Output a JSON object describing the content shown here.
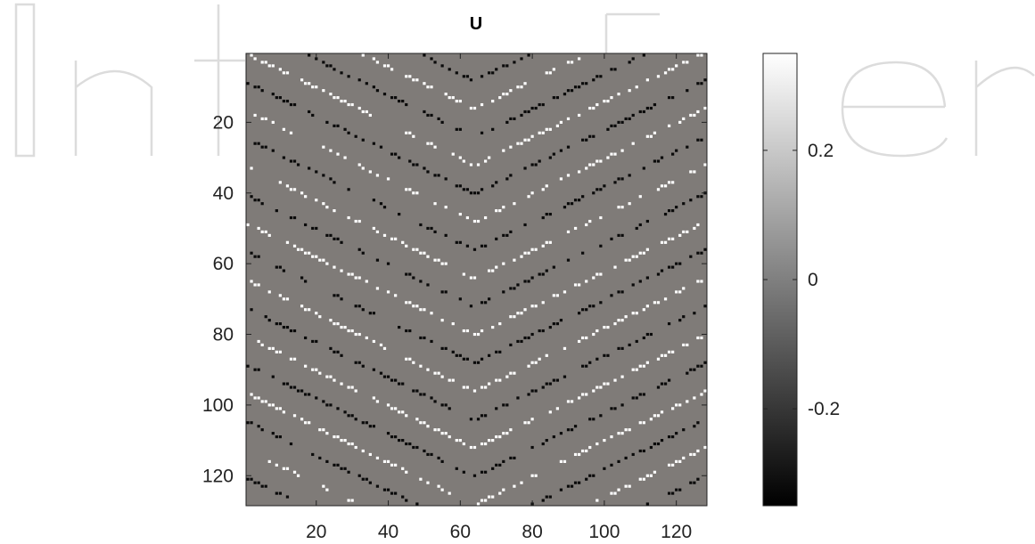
{
  "chart_data": [
    {
      "type": "heatmap",
      "title": "U",
      "xlabel": "",
      "ylabel": "",
      "grid": false,
      "x_range": [
        0.5,
        128.5
      ],
      "y_range": [
        0.5,
        128.5
      ],
      "y_direction": "reversed",
      "x_ticks": [
        "20",
        "40",
        "60",
        "80",
        "100",
        "120"
      ],
      "x_tick_values": [
        20,
        40,
        60,
        80,
        100,
        120
      ],
      "y_ticks": [
        "20",
        "40",
        "60",
        "80",
        "100",
        "120"
      ],
      "y_tick_values": [
        20,
        40,
        60,
        80,
        100,
        120
      ],
      "dimensions": [
        128,
        128
      ],
      "colormap": "gray",
      "background_value": 0,
      "pattern": "sparse isolated pixels of about +0.35 (white) and -0.35 (black) on a zero background, arranged along diagonal chevron bands that meet around x = 64",
      "colorbar": {
        "range": [
          -0.35,
          0.35
        ],
        "tick_labels": [
          "0.2",
          "0",
          "-0.2"
        ],
        "tick_values": [
          0.2,
          0,
          -0.2
        ],
        "placement": "right"
      }
    }
  ]
}
